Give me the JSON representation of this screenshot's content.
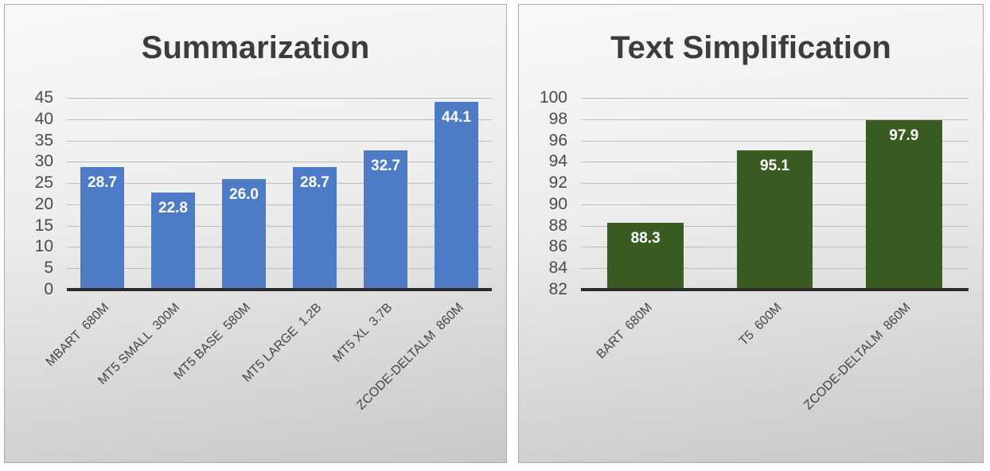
{
  "style": {
    "title_color": "#3c3c3c",
    "tick_label_color": "#4a4a4a",
    "category_label_color": "#454545",
    "gridline_color": "#bdbdbd",
    "axis_line_color": "#2b2b2b",
    "value_label_color": "#ffffff",
    "panel_border_color": "#ababab"
  },
  "chart_data": [
    {
      "type": "bar",
      "title": "Summarization",
      "categories": [
        "MBART  680M",
        "MT5 SMALL  300M",
        "MT5 BASE  580M",
        "MT5 LARGE  1.2B",
        "MT5 XL  3.7B",
        "ZCODE-DELTALM  860M"
      ],
      "values": [
        28.7,
        22.8,
        26.0,
        28.7,
        32.7,
        44.1
      ],
      "value_labels": [
        "28.7",
        "22.8",
        "26.0",
        "28.7",
        "32.7",
        "44.1"
      ],
      "xlabel": "",
      "ylabel": "",
      "ylim": [
        0,
        45
      ],
      "yticks": [
        0,
        5,
        10,
        15,
        20,
        25,
        30,
        35,
        40,
        45
      ],
      "grid": true,
      "legend": "none",
      "bar_color": "#4e7bc6",
      "bar_width_pct": 61
    },
    {
      "type": "bar",
      "title": "Text Simplification",
      "categories": [
        "BART  680M",
        "T5  600M",
        "ZCODE-DELTALM  860M"
      ],
      "values": [
        88.3,
        95.1,
        97.9
      ],
      "value_labels": [
        "88.3",
        "95.1",
        "97.9"
      ],
      "xlabel": "",
      "ylabel": "",
      "ylim": [
        82,
        100
      ],
      "yticks": [
        82,
        84,
        86,
        88,
        90,
        92,
        94,
        96,
        98,
        100
      ],
      "grid": true,
      "legend": "none",
      "bar_color": "#3a5c23",
      "bar_width_pct": 59
    }
  ]
}
